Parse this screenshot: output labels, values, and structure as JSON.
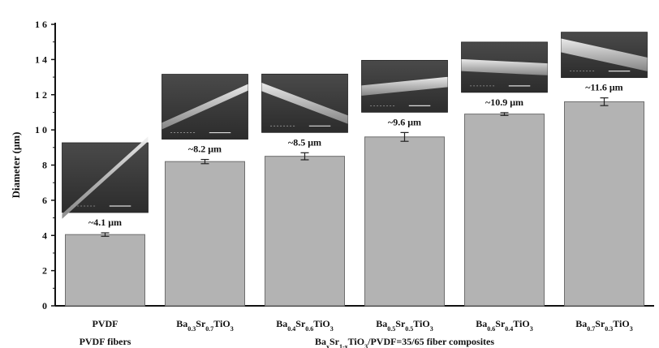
{
  "chart_data": {
    "type": "bar",
    "ylabel": "Diameter (μm)",
    "xlabel": "",
    "ylim": [
      0,
      16
    ],
    "yticks": [
      "0",
      "2",
      "4",
      "6",
      "8",
      "1 0",
      "1 2",
      "1 4",
      "1 6"
    ],
    "grid": false,
    "bar_color": "#b3b3b3",
    "categories": [
      {
        "base": "PVDF",
        "parts": [
          {
            "t": "PVDF"
          }
        ]
      },
      {
        "base": "Ba0.3Sr0.7TiO3",
        "parts": [
          {
            "t": "Ba"
          },
          {
            "t": "0.3",
            "sub": true
          },
          {
            "t": "Sr"
          },
          {
            "t": "0.7",
            "sub": true
          },
          {
            "t": "TiO"
          },
          {
            "t": "3",
            "sub": true
          }
        ]
      },
      {
        "base": "Ba0.4Sr0.6TiO3",
        "parts": [
          {
            "t": "Ba"
          },
          {
            "t": "0.4",
            "sub": true
          },
          {
            "t": "Sr"
          },
          {
            "t": "0.6",
            "sub": true
          },
          {
            "t": "TiO"
          },
          {
            "t": "3",
            "sub": true
          }
        ]
      },
      {
        "base": "Ba0.5Sr0.5TiO3",
        "parts": [
          {
            "t": "Ba"
          },
          {
            "t": "0.5",
            "sub": true
          },
          {
            "t": "Sr"
          },
          {
            "t": "0.5",
            "sub": true
          },
          {
            "t": "TiO"
          },
          {
            "t": "3",
            "sub": true
          }
        ]
      },
      {
        "base": "Ba0.6Sr0.4TiO3",
        "parts": [
          {
            "t": "Ba"
          },
          {
            "t": "0.6",
            "sub": true
          },
          {
            "t": "Sr"
          },
          {
            "t": "0.4",
            "sub": true
          },
          {
            "t": "TiO"
          },
          {
            "t": "3",
            "sub": true
          }
        ]
      },
      {
        "base": "Ba0.7Sr0.3TiO3",
        "parts": [
          {
            "t": "Ba"
          },
          {
            "t": "0.7",
            "sub": true
          },
          {
            "t": "Sr"
          },
          {
            "t": "0.3",
            "sub": true
          },
          {
            "t": "TiO"
          },
          {
            "t": "3",
            "sub": true
          }
        ]
      }
    ],
    "values": [
      4.05,
      8.2,
      8.5,
      9.6,
      10.9,
      11.6
    ],
    "errors": [
      0.1,
      0.12,
      0.2,
      0.25,
      0.08,
      0.22
    ],
    "data_labels": [
      "~4.1 μm",
      "~8.2 μm",
      "~8.5 μm",
      "~9.6 μm",
      "~10.9 μm",
      "~11.6 μm"
    ],
    "group_labels": [
      {
        "text": "PVDF fibers",
        "parts": [
          {
            "t": "PVDF fibers"
          }
        ]
      },
      {
        "text": "BaxSr1-xTiO3/PVDF=35/65 fiber composites",
        "parts": [
          {
            "t": "Ba"
          },
          {
            "t": "x",
            "sub": true
          },
          {
            "t": "Sr"
          },
          {
            "t": "1-x",
            "sub": true
          },
          {
            "t": "TiO"
          },
          {
            "t": "3",
            "sub": true
          },
          {
            "t": "/PVDF=35/65 fiber composites"
          }
        ]
      }
    ],
    "sem_images": [
      "SEM micrograph",
      "SEM micrograph",
      "SEM micrograph",
      "SEM micrograph",
      "SEM micrograph",
      "SEM micrograph"
    ]
  }
}
